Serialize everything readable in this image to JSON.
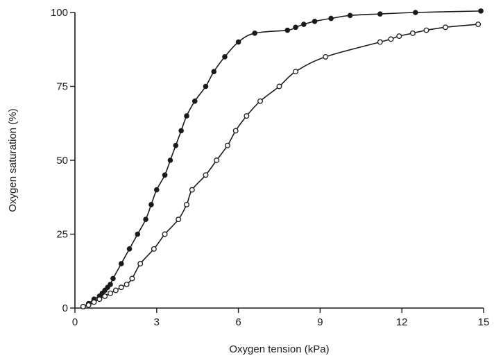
{
  "chart_data": {
    "type": "scatter",
    "xlabel": "Oxygen tension (kPa)",
    "ylabel": "Oxygen saturation (%)",
    "xlim": [
      0,
      15
    ],
    "ylim": [
      0,
      100
    ],
    "xticks": [
      0,
      3,
      6,
      9,
      12,
      15
    ],
    "yticks": [
      0,
      25,
      50,
      75,
      100
    ],
    "xtick_labels": [
      "0",
      "3",
      "6",
      "9",
      "12",
      "15"
    ],
    "ytick_labels": [
      "0",
      "25",
      "50",
      "75",
      "100"
    ],
    "grid": false,
    "legend": false,
    "series": [
      {
        "marker": "filled-circle",
        "lines": true,
        "x": [
          0.3,
          0.5,
          0.7,
          0.9,
          1.0,
          1.1,
          1.2,
          1.3,
          1.4,
          1.7,
          2.0,
          2.3,
          2.6,
          2.8,
          3.0,
          3.3,
          3.5,
          3.7,
          3.9,
          4.1,
          4.4,
          4.8,
          5.1,
          5.5,
          6.0,
          6.6,
          7.8,
          8.1,
          8.4,
          8.8,
          9.4,
          10.1,
          11.2,
          12.5,
          14.9
        ],
        "y": [
          0.5,
          1.5,
          3,
          4,
          5,
          6,
          7,
          8,
          10,
          15,
          20,
          25,
          30,
          35,
          40,
          45,
          50,
          55,
          60,
          65,
          70,
          75,
          80,
          85,
          90,
          93,
          94,
          95,
          96,
          97,
          98,
          99,
          99.5,
          100,
          100.5
        ]
      },
      {
        "marker": "open-circle",
        "lines": true,
        "x": [
          0.3,
          0.5,
          0.7,
          0.9,
          1.1,
          1.3,
          1.5,
          1.7,
          1.9,
          2.1,
          2.4,
          2.9,
          3.3,
          3.8,
          4.1,
          4.3,
          4.8,
          5.2,
          5.6,
          5.9,
          6.3,
          6.8,
          7.5,
          8.1,
          9.2,
          11.2,
          11.6,
          11.9,
          12.4,
          12.9,
          13.6,
          14.8
        ],
        "y": [
          0.5,
          1,
          2,
          3,
          4,
          5,
          6,
          7,
          8,
          10,
          15,
          20,
          25,
          30,
          35,
          40,
          45,
          50,
          55,
          60,
          65,
          70,
          75,
          80,
          85,
          90,
          91,
          92,
          93,
          94,
          95,
          96
        ]
      }
    ]
  }
}
